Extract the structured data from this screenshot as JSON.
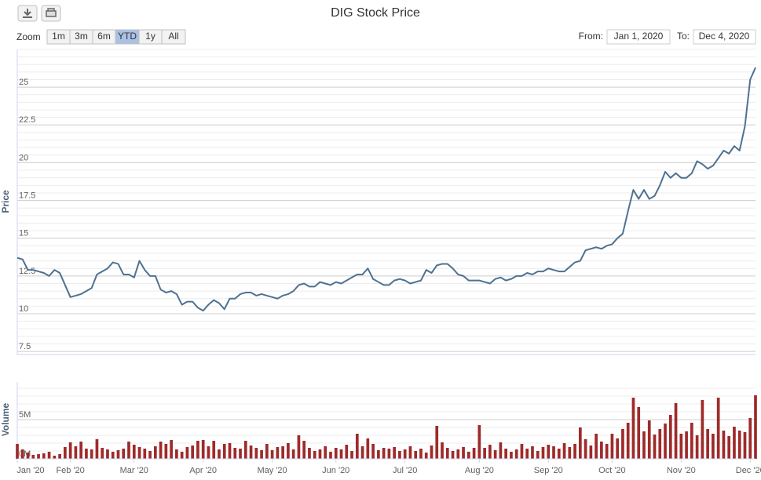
{
  "chart_data": {
    "type": "stock",
    "title": "DIG Stock Price",
    "zoom": {
      "label": "Zoom",
      "buttons": [
        "1m",
        "3m",
        "6m",
        "YTD",
        "1y",
        "All"
      ],
      "selected": 3
    },
    "range": {
      "from_label": "From:",
      "from": "Jan 1, 2020",
      "to_label": "To:",
      "to": "Dec 4, 2020"
    },
    "x": [
      "2020-01-03",
      "2020-01-06",
      "2020-01-08",
      "2020-01-10",
      "2020-01-13",
      "2020-01-15",
      "2020-01-17",
      "2020-01-20",
      "2020-01-22",
      "2020-01-31",
      "2020-02-03",
      "2020-02-05",
      "2020-02-07",
      "2020-02-10",
      "2020-02-12",
      "2020-02-14",
      "2020-02-17",
      "2020-02-19",
      "2020-02-21",
      "2020-02-24",
      "2020-02-26",
      "2020-02-28",
      "2020-03-02",
      "2020-03-04",
      "2020-03-06",
      "2020-03-09",
      "2020-03-11",
      "2020-03-13",
      "2020-03-16",
      "2020-03-18",
      "2020-03-20",
      "2020-03-23",
      "2020-03-25",
      "2020-03-27",
      "2020-03-30",
      "2020-04-01",
      "2020-04-03",
      "2020-04-06",
      "2020-04-08",
      "2020-04-10",
      "2020-04-13",
      "2020-04-15",
      "2020-04-17",
      "2020-04-20",
      "2020-04-22",
      "2020-04-24",
      "2020-04-27",
      "2020-04-29",
      "2020-05-04",
      "2020-05-06",
      "2020-05-08",
      "2020-05-11",
      "2020-05-13",
      "2020-05-15",
      "2020-05-18",
      "2020-05-20",
      "2020-05-22",
      "2020-05-25",
      "2020-05-27",
      "2020-05-29",
      "2020-06-01",
      "2020-06-03",
      "2020-06-05",
      "2020-06-08",
      "2020-06-10",
      "2020-06-12",
      "2020-06-15",
      "2020-06-17",
      "2020-06-19",
      "2020-06-22",
      "2020-06-24",
      "2020-06-26",
      "2020-06-29",
      "2020-07-01",
      "2020-07-03",
      "2020-07-06",
      "2020-07-08",
      "2020-07-10",
      "2020-07-13",
      "2020-07-15",
      "2020-07-17",
      "2020-07-20",
      "2020-07-22",
      "2020-07-24",
      "2020-07-27",
      "2020-07-29",
      "2020-07-31",
      "2020-08-03",
      "2020-08-05",
      "2020-08-07",
      "2020-08-10",
      "2020-08-12",
      "2020-08-14",
      "2020-08-17",
      "2020-08-19",
      "2020-08-21",
      "2020-08-24",
      "2020-08-26",
      "2020-08-28",
      "2020-08-31",
      "2020-09-04",
      "2020-09-07",
      "2020-09-09",
      "2020-09-11",
      "2020-09-14",
      "2020-09-16",
      "2020-09-18",
      "2020-09-21",
      "2020-09-23",
      "2020-09-25",
      "2020-09-28",
      "2020-09-30",
      "2020-10-02",
      "2020-10-05",
      "2020-10-07",
      "2020-10-09",
      "2020-10-12",
      "2020-10-14",
      "2020-10-16",
      "2020-10-19",
      "2020-10-21",
      "2020-10-23",
      "2020-10-26",
      "2020-10-28",
      "2020-10-30",
      "2020-11-02",
      "2020-11-04",
      "2020-11-06",
      "2020-11-09",
      "2020-11-11",
      "2020-11-13",
      "2020-11-16",
      "2020-11-18",
      "2020-11-20",
      "2020-11-23",
      "2020-11-25",
      "2020-11-27",
      "2020-11-30",
      "2020-12-02",
      "2020-12-04"
    ],
    "xticks": [
      {
        "value": "2020-01-01",
        "label": "Jan '20"
      },
      {
        "value": "2020-02-01",
        "label": "Feb '20"
      },
      {
        "value": "2020-03-01",
        "label": "Mar '20"
      },
      {
        "value": "2020-04-01",
        "label": "Apr '20"
      },
      {
        "value": "2020-05-01",
        "label": "May '20"
      },
      {
        "value": "2020-06-01",
        "label": "Jun '20"
      },
      {
        "value": "2020-07-01",
        "label": "Jul '20"
      },
      {
        "value": "2020-08-01",
        "label": "Aug '20"
      },
      {
        "value": "2020-09-01",
        "label": "Sep '20"
      },
      {
        "value": "2020-10-01",
        "label": "Oct '20"
      },
      {
        "value": "2020-11-01",
        "label": "Nov '20"
      },
      {
        "value": "2020-12-01",
        "label": "Dec '20"
      }
    ],
    "panes": [
      {
        "type": "line",
        "axis_title": "Price",
        "color": "#4e7191",
        "ylim": [
          7.3,
          27.5
        ],
        "yticks": [
          7.5,
          10,
          12.5,
          15,
          17.5,
          20,
          22.5,
          25
        ],
        "minor_tick_interval": 0.5,
        "values": [
          13.7,
          13.6,
          12.9,
          12.9,
          12.8,
          12.7,
          12.5,
          12.9,
          12.7,
          11.9,
          11.1,
          11.2,
          11.3,
          11.5,
          11.7,
          12.6,
          12.8,
          13.0,
          13.4,
          13.3,
          12.6,
          12.6,
          12.4,
          13.5,
          12.9,
          12.5,
          12.5,
          11.6,
          11.4,
          11.5,
          11.3,
          10.6,
          10.8,
          10.8,
          10.4,
          10.2,
          10.6,
          10.9,
          10.7,
          10.3,
          11.0,
          11.0,
          11.3,
          11.4,
          11.4,
          11.2,
          11.3,
          11.2,
          11.1,
          11.0,
          11.2,
          11.3,
          11.5,
          11.9,
          12.0,
          11.8,
          11.8,
          12.1,
          12.0,
          11.9,
          12.1,
          12.0,
          12.2,
          12.4,
          12.6,
          12.6,
          13.0,
          12.3,
          12.1,
          11.9,
          11.9,
          12.2,
          12.3,
          12.2,
          12.0,
          12.1,
          12.2,
          12.9,
          12.7,
          13.2,
          13.3,
          13.3,
          13.0,
          12.6,
          12.5,
          12.2,
          12.2,
          12.2,
          12.1,
          12.0,
          12.3,
          12.4,
          12.2,
          12.3,
          12.5,
          12.5,
          12.7,
          12.6,
          12.8,
          12.8,
          13.0,
          12.9,
          12.8,
          12.8,
          13.1,
          13.4,
          13.5,
          14.2,
          14.3,
          14.4,
          14.3,
          14.5,
          14.6,
          15.0,
          15.3,
          16.8,
          18.2,
          17.6,
          18.2,
          17.6,
          17.8,
          18.5,
          19.4,
          19.0,
          19.3,
          19.0,
          19.0,
          19.3,
          20.1,
          19.9,
          19.6,
          19.8,
          20.3,
          20.8,
          20.6,
          21.1,
          20.8,
          22.4,
          25.5,
          26.3
        ]
      },
      {
        "type": "column",
        "axis_title": "Volume",
        "color": "#9e2a2a",
        "ylim": [
          0,
          9.8
        ],
        "yticks": [
          {
            "value": 0,
            "label": "0M"
          },
          {
            "value": 5,
            "label": "5M"
          }
        ],
        "minor_tick_interval": 1,
        "values": [
          1.9,
          1.2,
          0.8,
          0.5,
          0.6,
          0.7,
          0.9,
          0.4,
          0.6,
          1.5,
          2.1,
          1.6,
          2.2,
          1.3,
          1.2,
          2.5,
          1.4,
          1.2,
          0.9,
          1.1,
          1.3,
          2.2,
          1.8,
          1.5,
          1.3,
          1.0,
          1.6,
          2.2,
          1.9,
          2.4,
          1.2,
          0.9,
          1.5,
          1.7,
          2.3,
          2.4,
          1.6,
          2.3,
          1.2,
          1.9,
          2.0,
          1.4,
          1.3,
          2.3,
          1.7,
          1.4,
          1.1,
          1.9,
          1.1,
          1.5,
          1.6,
          2.0,
          1.2,
          3.0,
          2.3,
          1.4,
          1.0,
          1.2,
          1.6,
          0.9,
          1.4,
          1.2,
          1.8,
          1.0,
          3.2,
          1.6,
          2.6,
          1.9,
          1.1,
          1.4,
          1.3,
          1.5,
          1.0,
          1.2,
          1.6,
          1.0,
          1.3,
          0.8,
          1.7,
          4.2,
          2.1,
          1.4,
          1.0,
          1.2,
          1.5,
          0.9,
          1.4,
          4.3,
          1.4,
          1.8,
          1.1,
          2.1,
          1.3,
          0.9,
          1.2,
          1.9,
          1.3,
          1.6,
          1.0,
          1.5,
          1.8,
          1.6,
          1.3,
          2.0,
          1.5,
          1.9,
          4.0,
          2.5,
          1.7,
          3.2,
          2.2,
          1.9,
          3.2,
          2.6,
          3.8,
          4.6,
          7.8,
          6.6,
          3.5,
          4.9,
          3.1,
          3.8,
          4.5,
          5.6,
          7.1,
          3.2,
          3.5,
          4.6,
          3.0,
          7.5,
          3.8,
          3.2,
          7.8,
          3.6,
          2.9,
          4.1,
          3.6,
          3.4,
          5.2,
          8.1
        ]
      }
    ]
  }
}
